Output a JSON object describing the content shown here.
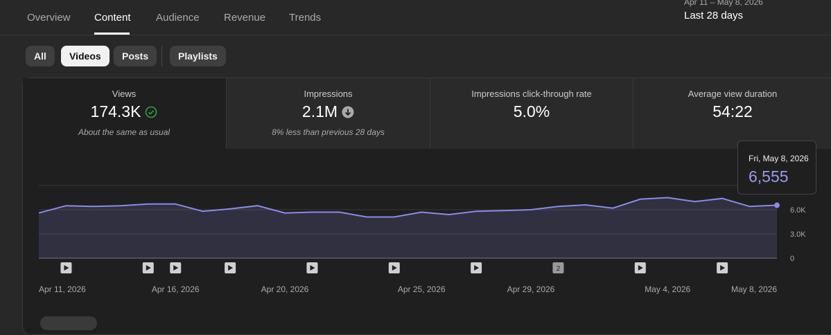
{
  "tabs": [
    "Overview",
    "Content",
    "Audience",
    "Revenue",
    "Trends"
  ],
  "active_tab": 1,
  "date_range": {
    "range": "Apr 11 – May 8, 2026",
    "label": "Last 28 days"
  },
  "filters": [
    "All",
    "Videos",
    "Posts",
    "Playlists"
  ],
  "selected_filter": 1,
  "metrics": [
    {
      "title": "Views",
      "value": "174.3K",
      "note": "About the same as usual",
      "icon": "check"
    },
    {
      "title": "Impressions",
      "value": "2.1M",
      "note": "8% less than previous 28 days",
      "icon": "down"
    },
    {
      "title": "Impressions click-through rate",
      "value": "5.0%"
    },
    {
      "title": "Average view duration",
      "value": "54:22"
    }
  ],
  "chart_data": {
    "type": "area",
    "categories": [
      "Apr 11, 2026",
      null,
      null,
      null,
      null,
      "Apr 16, 2026",
      null,
      null,
      null,
      "Apr 20, 2026",
      null,
      null,
      null,
      null,
      "Apr 25, 2026",
      null,
      null,
      null,
      "Apr 29, 2026",
      null,
      null,
      null,
      null,
      "May 4, 2026",
      null,
      null,
      null,
      "May 8, 2026"
    ],
    "series": [
      {
        "name": "Views",
        "color": "#8b8bea",
        "values": [
          5600,
          6500,
          6400,
          6500,
          6700,
          6700,
          5800,
          6100,
          6500,
          5600,
          5700,
          5700,
          5100,
          5100,
          5700,
          5400,
          5800,
          5900,
          6000,
          6400,
          6600,
          6200,
          7300,
          7500,
          7000,
          7400,
          6400,
          6555
        ]
      }
    ],
    "ylim": [
      0,
      9000
    ],
    "yticks": [
      0,
      {
        "value": 3000,
        "label": "3.0K"
      },
      {
        "value": 6000,
        "label": "6.0K"
      }
    ],
    "grid": true,
    "publish_markers": [
      {
        "index": 1
      },
      {
        "index": 4
      },
      {
        "index": 5
      },
      {
        "index": 7
      },
      {
        "index": 10
      },
      {
        "index": 13
      },
      {
        "index": 16
      },
      {
        "index": 19,
        "label": "2"
      },
      {
        "index": 22
      },
      {
        "index": 25
      }
    ],
    "tooltip": {
      "date": "Fri, May 8, 2026",
      "index": 27,
      "label": "6,555"
    }
  }
}
